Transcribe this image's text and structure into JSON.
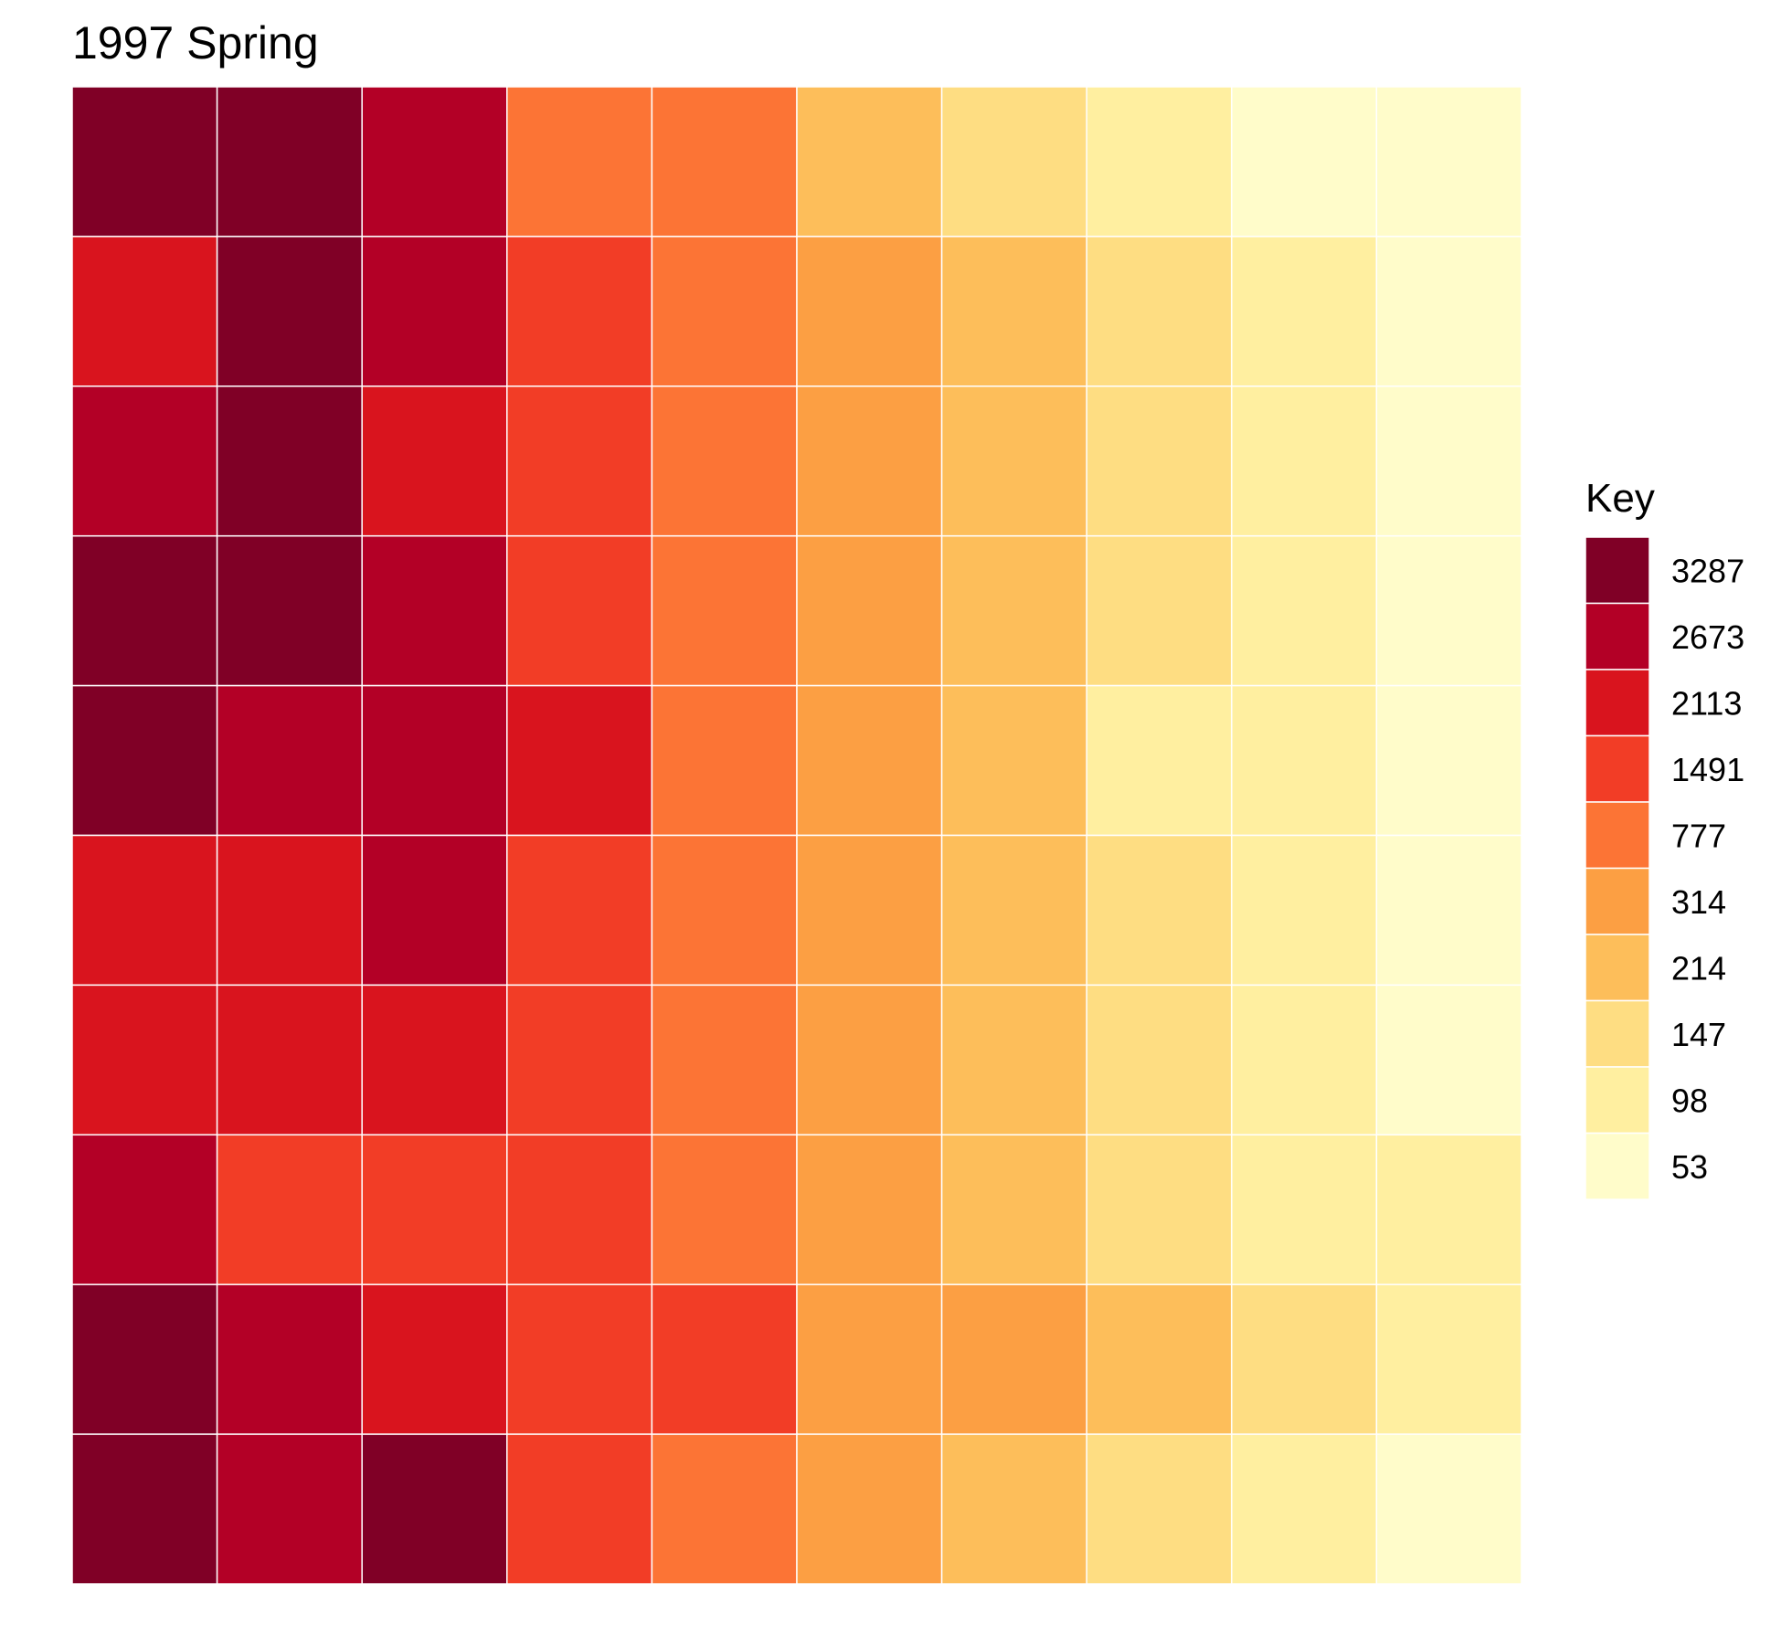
{
  "chart_data": {
    "type": "heatmap",
    "title": "1997 Spring",
    "xlabel": "",
    "ylabel": "",
    "rows": 10,
    "columns": 10,
    "grid_lines": "white",
    "legend": {
      "title": "Key",
      "placement": "right",
      "entries": [
        {
          "label": "3287",
          "color": "#800026"
        },
        {
          "label": "2673",
          "color": "#B30026"
        },
        {
          "label": "2113",
          "color": "#D9141E"
        },
        {
          "label": "1491",
          "color": "#F23D26"
        },
        {
          "label": "777",
          "color": "#FC7435"
        },
        {
          "label": "314",
          "color": "#FC9F43"
        },
        {
          "label": "214",
          "color": "#FDBE5A"
        },
        {
          "label": "147",
          "color": "#FEDD82"
        },
        {
          "label": "98",
          "color": "#FFEFA0"
        },
        {
          "label": "53",
          "color": "#FFFCCA"
        }
      ]
    },
    "cells": [
      [
        "3287",
        "3287",
        "2673",
        "777",
        "777",
        "214",
        "147",
        "98",
        "53",
        "53"
      ],
      [
        "2113",
        "3287",
        "2673",
        "1491",
        "777",
        "314",
        "214",
        "147",
        "98",
        "53"
      ],
      [
        "2673",
        "3287",
        "2113",
        "1491",
        "777",
        "314",
        "214",
        "147",
        "98",
        "53"
      ],
      [
        "3287",
        "3287",
        "2673",
        "1491",
        "777",
        "314",
        "214",
        "147",
        "98",
        "53"
      ],
      [
        "3287",
        "2673",
        "2673",
        "2113",
        "777",
        "314",
        "214",
        "98",
        "98",
        "53"
      ],
      [
        "2113",
        "2113",
        "2673",
        "1491",
        "777",
        "314",
        "214",
        "147",
        "98",
        "53"
      ],
      [
        "2113",
        "2113",
        "2113",
        "1491",
        "777",
        "314",
        "214",
        "147",
        "98",
        "53"
      ],
      [
        "2673",
        "1491",
        "1491",
        "1491",
        "777",
        "314",
        "214",
        "147",
        "98",
        "98"
      ],
      [
        "3287",
        "2673",
        "2113",
        "1491",
        "1491",
        "314",
        "314",
        "214",
        "147",
        "98"
      ],
      [
        "3287",
        "2673",
        "3287",
        "1491",
        "777",
        "314",
        "214",
        "147",
        "98",
        "53"
      ]
    ]
  }
}
